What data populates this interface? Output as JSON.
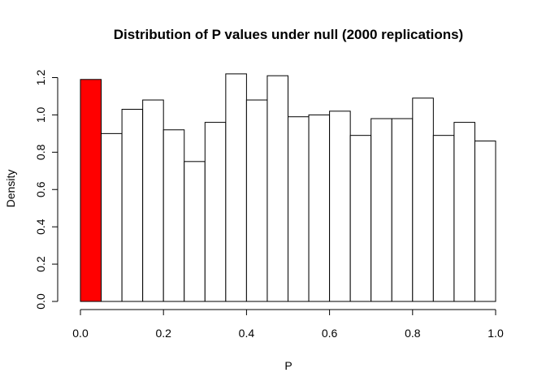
{
  "chart_data": {
    "type": "bar",
    "title": "Distribution of P values under null (2000 replications)",
    "xlabel": "P",
    "ylabel": "Density",
    "bin_edges": [
      0.0,
      0.05,
      0.1,
      0.15,
      0.2,
      0.25,
      0.3,
      0.35,
      0.4,
      0.45,
      0.5,
      0.55,
      0.6,
      0.65,
      0.7,
      0.75,
      0.8,
      0.85,
      0.9,
      0.95,
      1.0
    ],
    "values": [
      1.19,
      0.9,
      1.03,
      1.08,
      0.92,
      0.75,
      0.96,
      1.22,
      1.08,
      1.21,
      0.99,
      1.0,
      1.02,
      0.89,
      0.98,
      0.98,
      1.09,
      0.89,
      0.96,
      0.86
    ],
    "highlight_bin_index": 0,
    "highlight_color": "#ff0000",
    "bar_color": "#ffffff",
    "border_color": "#000000",
    "xlim": [
      0.0,
      1.0
    ],
    "ylim": [
      0.0,
      1.2
    ],
    "x_ticks": [
      0.0,
      0.2,
      0.4,
      0.6,
      0.8,
      1.0
    ],
    "x_tick_labels": [
      "0.0",
      "0.2",
      "0.4",
      "0.6",
      "0.8",
      "1.0"
    ],
    "y_ticks": [
      0.0,
      0.2,
      0.4,
      0.6,
      0.8,
      1.0,
      1.2
    ],
    "y_tick_labels": [
      "0.0",
      "0.2",
      "0.4",
      "0.6",
      "0.8",
      "1.0",
      "1.2"
    ],
    "grid": false,
    "legend": "none"
  }
}
